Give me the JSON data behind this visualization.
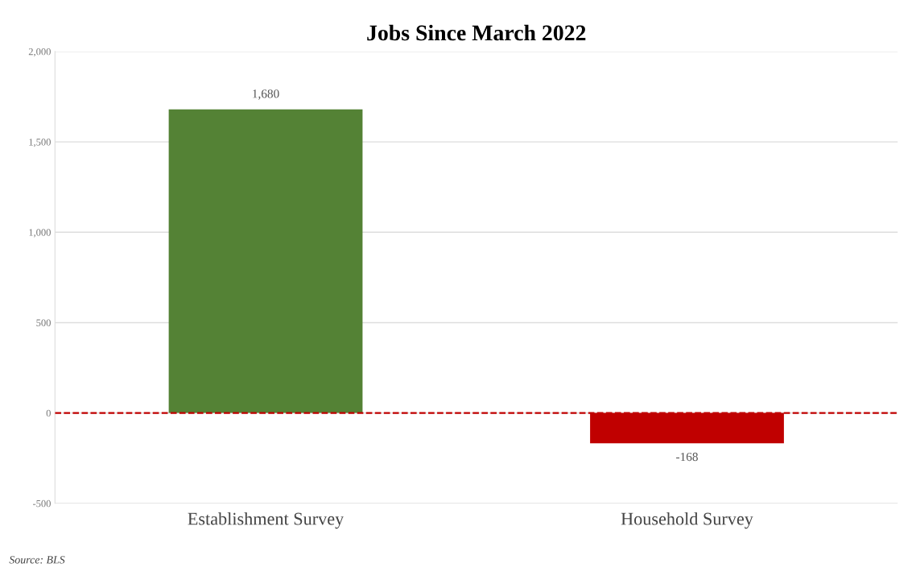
{
  "chart_data": {
    "type": "bar",
    "title": "Jobs Since March 2022",
    "categories": [
      "Establishment Survey",
      "Household Survey"
    ],
    "values": [
      1680,
      -168
    ],
    "colors": [
      "#548235",
      "#c00000"
    ],
    "value_labels": [
      "1,680",
      "-168"
    ],
    "ylim": [
      -500,
      2000
    ],
    "yticks": [
      {
        "value": 2000,
        "label": "2,000"
      },
      {
        "value": 1500,
        "label": "1,500"
      },
      {
        "value": 1000,
        "label": "1,000"
      },
      500,
      0,
      -500
    ],
    "grid": "y",
    "ref_lines": [
      {
        "axis": "y",
        "value": 0,
        "color": "#c00000",
        "line_style": "dashed"
      }
    ],
    "annotations": [
      "Source: BLS"
    ]
  }
}
